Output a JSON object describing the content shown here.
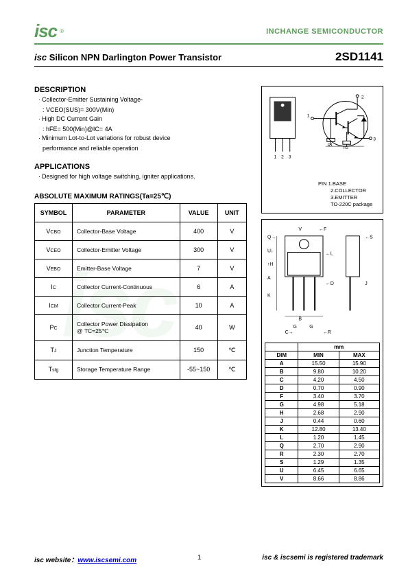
{
  "header": {
    "logo_text": "isc",
    "company": "INCHANGE SEMICONDUCTOR"
  },
  "title": {
    "prefix": "isc",
    "main": "Silicon NPN Darlington Power Transistor",
    "part_number": "2SD1141"
  },
  "description": {
    "heading": "DESCRIPTION",
    "items": [
      {
        "text": "Collector-Emitter Sustaining Voltage-",
        "sub": ": VCEO(SUS)= 300V(Min)"
      },
      {
        "text": "High DC Current Gain",
        "sub": ": hFE= 500(Min)@IC= 4A"
      },
      {
        "text": "Minimum Lot-to-Lot variations for robust device",
        "sub": "performance and reliable operation"
      }
    ]
  },
  "applications": {
    "heading": "APPLICATIONS",
    "text": "Designed for high voltage switching, igniter applications."
  },
  "ratings": {
    "heading": "ABSOLUTE MAXIMUM RATINGS(Ta=25℃)",
    "columns": [
      "SYMBOL",
      "PARAMETER",
      "VALUE",
      "UNIT"
    ],
    "rows": [
      {
        "sym": "VCBO",
        "param": "Collector-Base Voltage",
        "value": "400",
        "unit": "V"
      },
      {
        "sym": "VCEO",
        "param": "Collector-Emitter Voltage",
        "value": "300",
        "unit": "V"
      },
      {
        "sym": "VEBO",
        "param": "Emitter-Base Voltage",
        "value": "7",
        "unit": "V"
      },
      {
        "sym": "IC",
        "param": "Collector Current-Continuous",
        "value": "6",
        "unit": "A"
      },
      {
        "sym": "ICM",
        "param": "Collector Current-Peak",
        "value": "10",
        "unit": "A"
      },
      {
        "sym": "PC",
        "param": "Collector Power Dissipation\n@ TC=25℃",
        "value": "40",
        "unit": "W"
      },
      {
        "sym": "TJ",
        "param": "Junction Temperature",
        "value": "150",
        "unit": "℃"
      },
      {
        "sym": "Tstg",
        "param": "Storage Temperature Range",
        "value": "-55~150",
        "unit": "℃"
      }
    ]
  },
  "pins": {
    "label": "PIN",
    "p1": "1.BASE",
    "p2": "2.COLLECTOR",
    "p3": "3.EMITTER",
    "pkg": "TO-220C package"
  },
  "dimensions": {
    "unit": "mm",
    "columns": [
      "DIM",
      "MIN",
      "MAX"
    ],
    "rows": [
      [
        "A",
        "15.50",
        "15.90"
      ],
      [
        "B",
        "9.80",
        "10.20"
      ],
      [
        "C",
        "4.20",
        "4.50"
      ],
      [
        "D",
        "0.70",
        "0.90"
      ],
      [
        "F",
        "3.40",
        "3.70"
      ],
      [
        "G",
        "4.98",
        "5.18"
      ],
      [
        "H",
        "2.68",
        "2.90"
      ],
      [
        "J",
        "0.44",
        "0.60"
      ],
      [
        "K",
        "12.80",
        "13.40"
      ],
      [
        "L",
        "1.20",
        "1.45"
      ],
      [
        "Q",
        "2.70",
        "2.90"
      ],
      [
        "R",
        "2.30",
        "2.70"
      ],
      [
        "S",
        "1.29",
        "1.35"
      ],
      [
        "U",
        "6.45",
        "6.65"
      ],
      [
        "V",
        "8.66",
        "8.86"
      ]
    ]
  },
  "footer": {
    "website_label": "isc website：",
    "website_url": "www.iscsemi.com",
    "page": "1",
    "trademark": "isc & iscsemi is registered trademark"
  },
  "watermark": "isc"
}
